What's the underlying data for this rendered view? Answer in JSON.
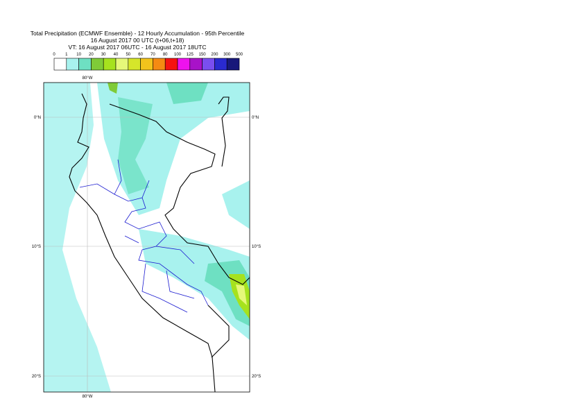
{
  "header": {
    "title": "Total Precipitation (ECMWF Ensemble) - 12 Hourly Accumulation - 95th Percentile",
    "base_time": "16 August 2017 00 UTC (t+06,t+18)",
    "valid_time": "VT: 16 August 2017 06UTC - 16 August 2017 18UTC"
  },
  "legend": {
    "ticks": [
      0,
      1,
      10,
      20,
      30,
      40,
      50,
      60,
      70,
      80,
      100,
      125,
      150,
      200,
      300,
      500
    ],
    "colors": [
      "#ffffff",
      "#a8f2ee",
      "#6ee0c2",
      "#7fcb38",
      "#a6e21e",
      "#e6f87a",
      "#d6e62a",
      "#f2c41c",
      "#f58a12",
      "#f51212",
      "#ee12ee",
      "#a812c8",
      "#7a4ef0",
      "#2a2ad0",
      "#18187a"
    ]
  },
  "map": {
    "lat_labels": [
      "0°N",
      "10°S",
      "20°S"
    ],
    "lon_labels": [
      "80°W"
    ]
  }
}
